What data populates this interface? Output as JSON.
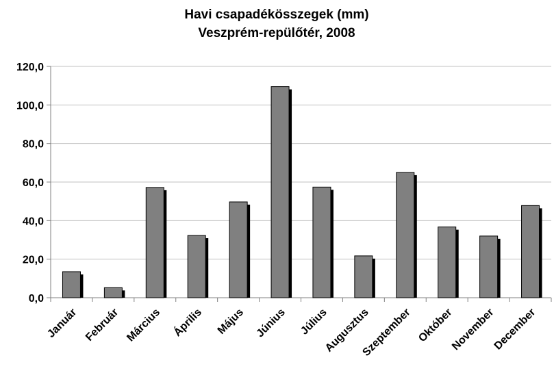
{
  "chart_data": {
    "type": "bar",
    "title": "Havi csapadékösszegek (mm)",
    "subtitle": "Veszprém-repülőtér, 2008",
    "xlabel": "",
    "ylabel": "",
    "categories": [
      "Január",
      "Február",
      "Március",
      "Április",
      "Május",
      "Június",
      "Július",
      "Augusztus",
      "Szeptember",
      "Október",
      "November",
      "December"
    ],
    "values": [
      13.5,
      5.2,
      57.2,
      32.3,
      49.7,
      109.5,
      57.4,
      21.7,
      65.0,
      36.7,
      32.0,
      47.8
    ],
    "ylim": [
      0,
      120
    ],
    "yticks": [
      "0,0",
      "20,0",
      "40,0",
      "60,0",
      "80,0",
      "100,0",
      "120,0"
    ],
    "grid": true,
    "legend": "none",
    "colors": {
      "bar": "#808080",
      "bar_border": "#000000",
      "bar_shadow": "#000000",
      "gridline": "#c0c0c0",
      "axis": "#808080"
    }
  }
}
